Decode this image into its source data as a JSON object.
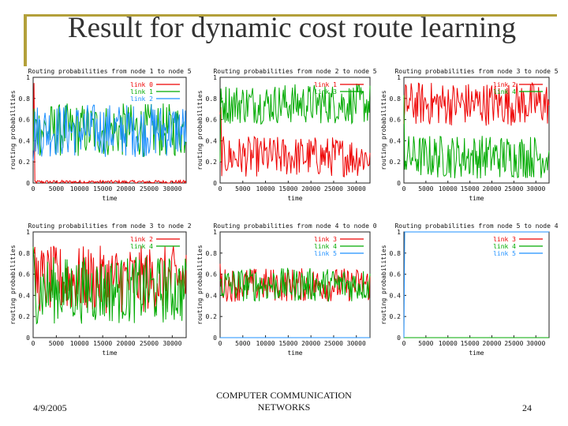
{
  "slide": {
    "title": "Result for dynamic cost route learning",
    "footer_date": "4/9/2005",
    "footer_center_line1": "COMPUTER COMMUNICATION",
    "footer_center_line2": "NETWORKS",
    "page_number": "24"
  },
  "chart_data": [
    {
      "type": "line",
      "title": "Routing probabilities from node 1 to node 5",
      "xlabel": "time",
      "ylabel": "routing probabilities",
      "xlim": [
        0,
        33000
      ],
      "ylim": [
        0,
        1
      ],
      "xticks": [
        "0",
        "5000",
        "10000",
        "15000",
        "20000",
        "25000",
        "30000"
      ],
      "yticks": [
        "0",
        "0.2",
        "0.4",
        "0.6",
        "0.8",
        "1"
      ],
      "legend": "top-right",
      "series": [
        {
          "name": "link 0",
          "color": "#ee0000",
          "mean": 0.01,
          "amp": 0.01
        },
        {
          "name": "link 1",
          "color": "#00aa00",
          "mean": 0.5,
          "amp": 0.16
        },
        {
          "name": "link 2",
          "color": "#1e90ff",
          "mean": 0.5,
          "amp": 0.16
        }
      ]
    },
    {
      "type": "line",
      "title": "Routing probabilities from node 2 to node 5",
      "xlabel": "time",
      "ylabel": "routing probabilities",
      "xlim": [
        0,
        33000
      ],
      "ylim": [
        0,
        1
      ],
      "xticks": [
        "0",
        "5000",
        "10000",
        "15000",
        "20000",
        "25000",
        "30000"
      ],
      "yticks": [
        "0",
        "0.2",
        "0.4",
        "0.6",
        "0.8",
        "1"
      ],
      "legend": "top-right",
      "series": [
        {
          "name": "link 1",
          "color": "#ee0000",
          "mean": 0.25,
          "amp": 0.12
        },
        {
          "name": "link 3",
          "color": "#00aa00",
          "mean": 0.75,
          "amp": 0.12
        }
      ]
    },
    {
      "type": "line",
      "title": "Routing probabilities from node 3 to node 5",
      "xlabel": "time",
      "ylabel": "routing probabilities",
      "xlim": [
        0,
        33000
      ],
      "ylim": [
        0,
        1
      ],
      "xticks": [
        "0",
        "5000",
        "10000",
        "15000",
        "20000",
        "25000",
        "30000"
      ],
      "yticks": [
        "0",
        "0.2",
        "0.4",
        "0.6",
        "0.8",
        "1"
      ],
      "legend": "top-right",
      "series": [
        {
          "name": "link 2",
          "color": "#ee0000",
          "mean": 0.75,
          "amp": 0.13
        },
        {
          "name": "link 4",
          "color": "#00aa00",
          "mean": 0.25,
          "amp": 0.13
        }
      ]
    },
    {
      "type": "line",
      "title": "Routing probabilities from node 3 to node 2",
      "xlabel": "time",
      "ylabel": "routing probabilities",
      "xlim": [
        0,
        33000
      ],
      "ylim": [
        0,
        1
      ],
      "xticks": [
        "0",
        "5000",
        "10000",
        "15000",
        "20000",
        "25000",
        "30000"
      ],
      "yticks": [
        "0",
        "0.2",
        "0.4",
        "0.6",
        "0.8",
        "1"
      ],
      "legend": "top-right",
      "series": [
        {
          "name": "link 2",
          "color": "#ee0000",
          "mean": 0.55,
          "amp": 0.2
        },
        {
          "name": "link 4",
          "color": "#00aa00",
          "mean": 0.45,
          "amp": 0.2
        }
      ]
    },
    {
      "type": "line",
      "title": "Routing probabilities from node 4 to node 0",
      "xlabel": "time",
      "ylabel": "routing probabilities",
      "xlim": [
        0,
        33000
      ],
      "ylim": [
        0,
        1
      ],
      "xticks": [
        "0",
        "5000",
        "10000",
        "15000",
        "20000",
        "25000",
        "30000"
      ],
      "yticks": [
        "0",
        "0.2",
        "0.4",
        "0.6",
        "0.8",
        "1"
      ],
      "legend": "top-right",
      "series": [
        {
          "name": "link 3",
          "color": "#ee0000",
          "mean": 0.5,
          "amp": 0.1
        },
        {
          "name": "link 4",
          "color": "#00aa00",
          "mean": 0.5,
          "amp": 0.1
        },
        {
          "name": "link 5",
          "color": "#1e90ff",
          "mean": 0.0,
          "amp": 0.0
        }
      ]
    },
    {
      "type": "line",
      "title": "Routing probabilities from node 5 to node 4",
      "xlabel": "time",
      "ylabel": "routing probabilities",
      "xlim": [
        0,
        33000
      ],
      "ylim": [
        0,
        1
      ],
      "xticks": [
        "0",
        "5000",
        "10000",
        "15000",
        "20000",
        "25000",
        "30000"
      ],
      "yticks": [
        "0",
        "0.2",
        "0.4",
        "0.6",
        "0.8",
        "1"
      ],
      "legend": "top-right",
      "series": [
        {
          "name": "link 3",
          "color": "#ee0000",
          "mean": 0.0,
          "amp": 0.0
        },
        {
          "name": "link 4",
          "color": "#00aa00",
          "mean": 0.0,
          "amp": 0.0
        },
        {
          "name": "link 5",
          "color": "#1e90ff",
          "mean": 1.0,
          "amp": 0.0
        }
      ]
    }
  ]
}
